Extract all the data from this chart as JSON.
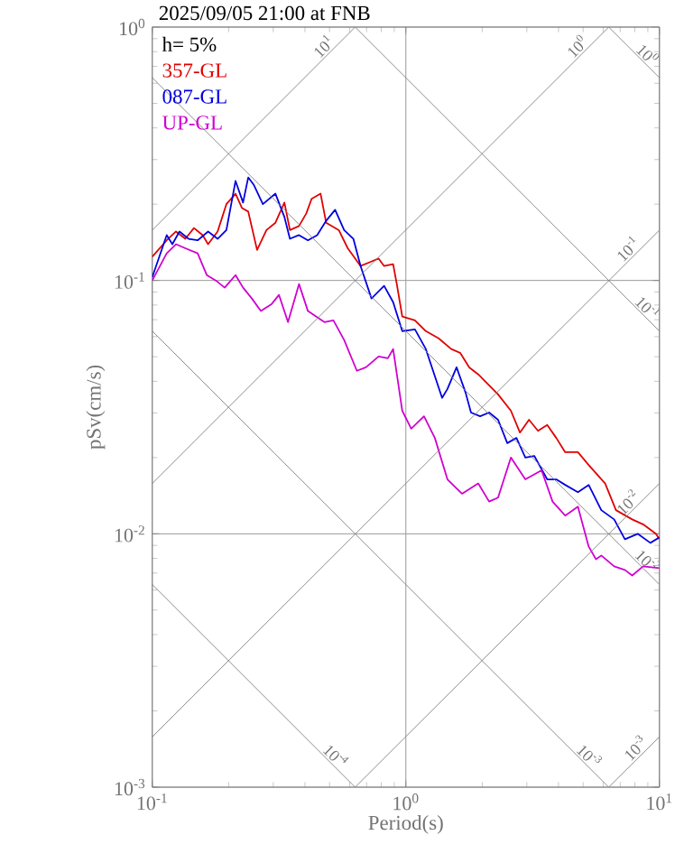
{
  "chart_data": {
    "type": "line",
    "title": "2025/09/05 21:00 at FNB",
    "xlabel": "Period(s)",
    "ylabel": "pSv(cm/s)",
    "legend_title": "h= 5%",
    "legend": "top left",
    "log": "xy",
    "grid": true,
    "xlim": [
      0.1,
      10
    ],
    "ylim": [
      0.001,
      1
    ],
    "xticks": [
      {
        "value": 0.1,
        "label": "10$^{-1}$"
      },
      {
        "value": 1,
        "label": "10$^{0}$"
      },
      {
        "value": 10,
        "label": "10$^{1}$"
      }
    ],
    "yticks": [
      {
        "value": 0.001,
        "label": "10$^{-3}$"
      },
      {
        "value": 0.01,
        "label": "10$^{-2}$"
      },
      {
        "value": 0.1,
        "label": "10$^{-1}$"
      },
      {
        "value": 1,
        "label": "10$^{0}$"
      }
    ],
    "series": [
      {
        "name": "357-GL",
        "color": "#e00000",
        "x": [
          0.1,
          0.114,
          0.124,
          0.135,
          0.146,
          0.158,
          0.166,
          0.181,
          0.196,
          0.213,
          0.226,
          0.239,
          0.259,
          0.282,
          0.306,
          0.332,
          0.349,
          0.379,
          0.405,
          0.425,
          0.461,
          0.485,
          0.544,
          0.59,
          0.663,
          0.72,
          0.781,
          0.821,
          0.891,
          0.921,
          0.968,
          1.086,
          1.199,
          1.346,
          1.51,
          1.637,
          1.778,
          1.93,
          2.096,
          2.31,
          2.596,
          2.818,
          3.06,
          3.32,
          3.61,
          3.92,
          4.25,
          4.77,
          5.26,
          6.11,
          6.74,
          7.81,
          8.62,
          9.68,
          10
        ],
        "values": [
          0.124,
          0.144,
          0.156,
          0.146,
          0.161,
          0.151,
          0.139,
          0.156,
          0.2,
          0.22,
          0.193,
          0.187,
          0.132,
          0.158,
          0.169,
          0.203,
          0.158,
          0.164,
          0.184,
          0.21,
          0.22,
          0.169,
          0.158,
          0.134,
          0.114,
          0.118,
          0.122,
          0.114,
          0.116,
          0.0968,
          0.072,
          0.0696,
          0.0631,
          0.0591,
          0.0536,
          0.0518,
          0.0454,
          0.0426,
          0.0392,
          0.0355,
          0.0306,
          0.0251,
          0.0282,
          0.0255,
          0.0269,
          0.0239,
          0.021,
          0.021,
          0.0187,
          0.0158,
          0.0124,
          0.0114,
          0.0109,
          0.01,
          0.00952
        ]
      },
      {
        "name": "087-GL",
        "color": "#0000e0",
        "x": [
          0.1,
          0.114,
          0.12,
          0.128,
          0.139,
          0.151,
          0.166,
          0.181,
          0.196,
          0.213,
          0.228,
          0.239,
          0.251,
          0.273,
          0.306,
          0.332,
          0.349,
          0.379,
          0.411,
          0.447,
          0.485,
          0.526,
          0.571,
          0.621,
          0.663,
          0.732,
          0.821,
          0.891,
          0.968,
          1.086,
          1.199,
          1.39,
          1.459,
          1.585,
          1.72,
          1.807,
          1.963,
          2.13,
          2.31,
          2.512,
          2.73,
          2.96,
          3.21,
          3.61,
          3.92,
          4.25,
          4.77,
          5.26,
          5.9,
          6.63,
          7.31,
          8.21,
          9.21,
          10
        ],
        "values": [
          0.103,
          0.151,
          0.139,
          0.156,
          0.146,
          0.144,
          0.156,
          0.146,
          0.158,
          0.247,
          0.203,
          0.255,
          0.239,
          0.2,
          0.22,
          0.178,
          0.146,
          0.151,
          0.144,
          0.151,
          0.172,
          0.19,
          0.158,
          0.146,
          0.114,
          0.0849,
          0.0952,
          0.0821,
          0.0631,
          0.0641,
          0.0536,
          0.0344,
          0.0373,
          0.0454,
          0.0361,
          0.0301,
          0.0291,
          0.0301,
          0.0282,
          0.0228,
          0.0239,
          0.02,
          0.0203,
          0.0164,
          0.0164,
          0.0156,
          0.0146,
          0.0156,
          0.0124,
          0.0114,
          0.00952,
          0.01,
          0.00921,
          0.00968
        ]
      },
      {
        "name": "UP-GL",
        "color": "#d000d0",
        "x": [
          0.1,
          0.114,
          0.124,
          0.135,
          0.151,
          0.164,
          0.178,
          0.193,
          0.213,
          0.228,
          0.247,
          0.268,
          0.296,
          0.316,
          0.343,
          0.379,
          0.411,
          0.477,
          0.518,
          0.571,
          0.641,
          0.696,
          0.781,
          0.849,
          0.891,
          0.968,
          1.05,
          1.179,
          1.301,
          1.459,
          1.665,
          1.93,
          2.13,
          2.31,
          2.596,
          2.96,
          3.43,
          3.79,
          4.25,
          4.77,
          5.26,
          5.62,
          5.9,
          6.63,
          7.31,
          7.81,
          8.62,
          10
        ],
        "values": [
          0.1,
          0.128,
          0.139,
          0.134,
          0.128,
          0.105,
          0.1,
          0.0937,
          0.105,
          0.0937,
          0.0849,
          0.0757,
          0.0808,
          0.0877,
          0.0685,
          0.0968,
          0.0757,
          0.0685,
          0.0696,
          0.0582,
          0.044,
          0.0454,
          0.0501,
          0.0493,
          0.0536,
          0.0306,
          0.026,
          0.0291,
          0.0239,
          0.0164,
          0.0144,
          0.0158,
          0.0134,
          0.0139,
          0.02,
          0.0164,
          0.0178,
          0.0134,
          0.0118,
          0.0128,
          0.00891,
          0.00794,
          0.00821,
          0.00744,
          0.0072,
          0.00685,
          0.00744,
          0.00732
        ]
      },
      {
        "color": "#808080",
        "x": [
          0.1,
          0.631
        ],
        "values": [
          0.158,
          1
        ]
      },
      {
        "color": "#808080",
        "x": [
          0.1,
          6.31
        ],
        "values": [
          0.0158,
          1
        ]
      },
      {
        "color": "#808080",
        "x": [
          0.1,
          10
        ],
        "values": [
          0.00158,
          0.158
        ]
      },
      {
        "color": "#808080",
        "x": [
          0.631,
          10
        ],
        "values": [
          0.001,
          0.0158
        ]
      },
      {
        "color": "#808080",
        "x": [
          6.31,
          10
        ],
        "values": [
          0.001,
          0.00158
        ]
      },
      {
        "color": "#808080",
        "x": [
          6.31,
          10
        ],
        "values": [
          1,
          0.631
        ]
      },
      {
        "color": "#808080",
        "x": [
          0.631,
          10
        ],
        "values": [
          1,
          0.0631
        ]
      },
      {
        "color": "#808080",
        "x": [
          0.1,
          10
        ],
        "values": [
          0.631,
          0.00631
        ]
      },
      {
        "color": "#808080",
        "x": [
          0.1,
          6.31
        ],
        "values": [
          0.0631,
          0.001
        ]
      },
      {
        "color": "#808080",
        "x": [
          0.1,
          0.631
        ],
        "values": [
          0.00631,
          0.001
        ]
      }
    ],
    "annotations": [
      {
        "text": "10$^{1}$",
        "x": 0.5,
        "y": 0.794
      },
      {
        "text": "10$^{0}$",
        "x": 5,
        "y": 0.794
      },
      {
        "text": "10$^{-1}$",
        "x": 7.94,
        "y": 0.126
      },
      {
        "text": "10$^{-2}$",
        "x": 7.94,
        "y": 0.0126
      },
      {
        "text": "10$^{-3}$",
        "x": 8.5,
        "y": 0.00135
      },
      {
        "text": "10$^{0}$",
        "x": 8.5,
        "y": 0.74
      },
      {
        "text": "10$^{-1}$",
        "x": 8.5,
        "y": 0.074
      },
      {
        "text": "10$^{-2}$",
        "x": 8.5,
        "y": 0.0074
      },
      {
        "text": "10$^{-3}$",
        "x": 5,
        "y": 0.00126
      },
      {
        "text": "10$^{-4}$",
        "x": 0.5,
        "y": 0.00126
      }
    ]
  }
}
